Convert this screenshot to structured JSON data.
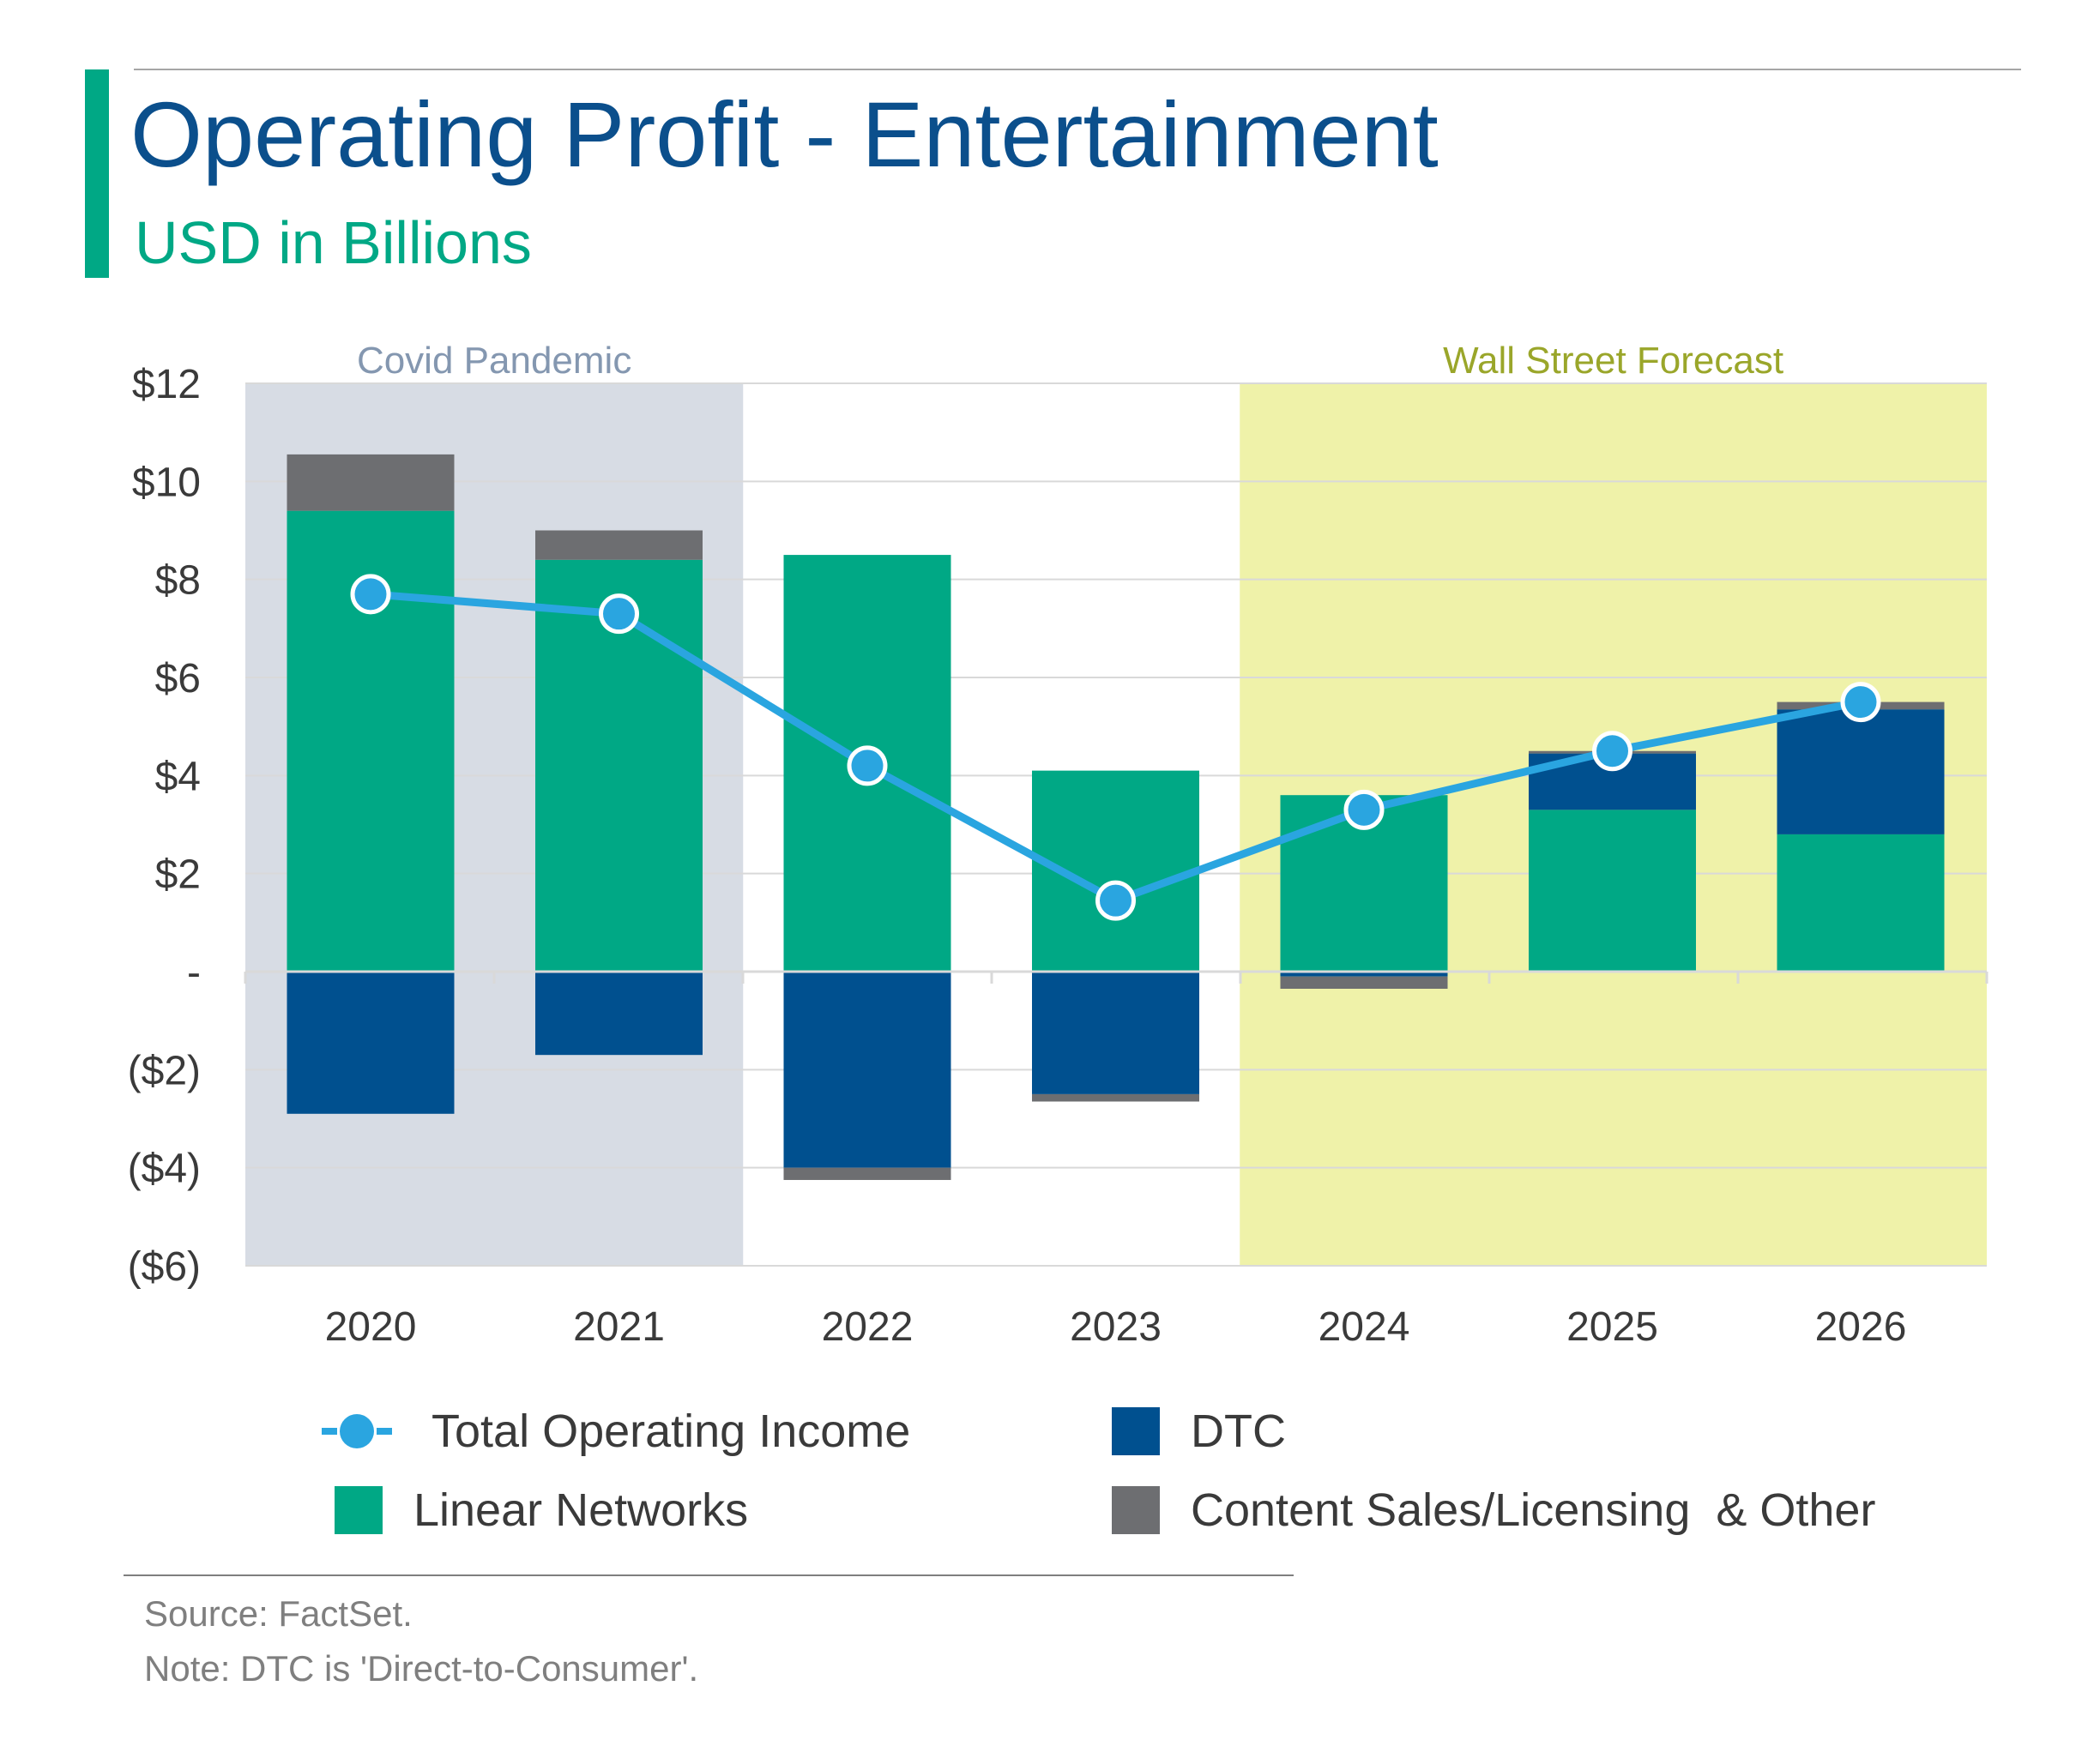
{
  "header": {
    "title": "Operating Profit - Entertainment",
    "subtitle": "USD in Billions"
  },
  "colors": {
    "title": "#0b4f8c",
    "accent": "#00a885",
    "linear_networks": "#00a885",
    "dtc": "#00508f",
    "content_sales": "#6d6e71",
    "total_line": "#2aa5e0",
    "covid_region": "#d7dce4",
    "forecast_region": "#eff2a9",
    "covid_label": "#8497b0",
    "forecast_label": "#9aa62a"
  },
  "chart_data": {
    "type": "bar",
    "stacked": true,
    "categories": [
      "2020",
      "2021",
      "2022",
      "2023",
      "2024",
      "2025",
      "2026"
    ],
    "series": [
      {
        "name": "Linear Networks",
        "type": "bar",
        "color": "#00a885",
        "values": [
          9.4,
          8.4,
          8.5,
          4.1,
          3.6,
          3.3,
          2.8
        ]
      },
      {
        "name": "DTC",
        "type": "bar",
        "color": "#00508f",
        "values": [
          -2.9,
          -1.7,
          -4.0,
          -2.5,
          -0.1,
          1.15,
          2.55
        ]
      },
      {
        "name": "Content Sales/Licensing  & Other",
        "type": "bar",
        "color": "#6d6e71",
        "values": [
          1.15,
          0.6,
          -0.25,
          -0.15,
          -0.25,
          0.05,
          0.15
        ]
      },
      {
        "name": "Total Operating Income",
        "type": "line",
        "color": "#2aa5e0",
        "values": [
          7.7,
          7.3,
          4.2,
          1.45,
          3.3,
          4.5,
          5.5
        ]
      }
    ],
    "ylim": [
      -6,
      12
    ],
    "yticks": [
      12,
      10,
      8,
      6,
      4,
      2,
      0,
      -2,
      -4,
      -6
    ],
    "ytick_labels": [
      "$12",
      "$10",
      "$8",
      "$6",
      "$4",
      "$2",
      "-",
      "($2)",
      "($4)",
      "($6)"
    ],
    "xlabel": "",
    "ylabel": "",
    "grid": true,
    "legend_position": "bottom",
    "annotations": [
      {
        "label": "Covid Pandemic",
        "from": "2020",
        "to": "2021"
      },
      {
        "label": "Wall Street Forecast",
        "from": "2024",
        "to": "2026"
      }
    ]
  },
  "legend": {
    "items": [
      {
        "label": "Total Operating Income"
      },
      {
        "label": "DTC"
      },
      {
        "label": "Linear Networks"
      },
      {
        "label": "Content Sales/Licensing  & Other"
      }
    ]
  },
  "footer": {
    "source": "Source: FactSet.",
    "note": "Note: DTC is 'Direct-to-Consumer'."
  }
}
